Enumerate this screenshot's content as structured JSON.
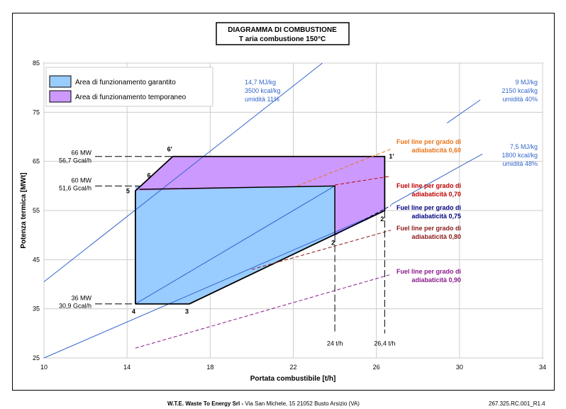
{
  "chart_data": {
    "type": "area",
    "title": "DIAGRAMMA DI COMBUSTIONE",
    "subtitle": "T aria combustione 150°C",
    "xlabel": "Portata combustibile [t/h]",
    "ylabel": "Potenza termica [MWt]",
    "xlim": [
      10,
      34
    ],
    "ylim": [
      25,
      85
    ],
    "xticks": [
      10,
      14,
      18,
      22,
      26,
      30,
      34
    ],
    "yticks": [
      25,
      35,
      45,
      55,
      65,
      75,
      85
    ],
    "grid": true,
    "legend_position": "top-left",
    "legend": [
      {
        "label": "Area di funzionamento garantito",
        "color": "#99ccff"
      },
      {
        "label": "Area di funzionamento temporaneo",
        "color": "#cc99ff"
      }
    ],
    "regions": [
      {
        "name": "Area di funzionamento garantito",
        "color": "#99ccff",
        "x": [
          14.4,
          14.4,
          24.0,
          24.0,
          17.0
        ],
        "y": [
          36,
          60,
          60,
          50,
          36
        ]
      },
      {
        "name": "Area di funzionamento temporaneo",
        "color": "#cc99ff",
        "x": [
          14.4,
          16.2,
          26.4,
          26.4,
          24.0,
          24.0
        ],
        "y": [
          59,
          66,
          66,
          55,
          50,
          60
        ]
      }
    ],
    "operating_points": [
      {
        "label": "1'",
        "x": 26.4,
        "y": 66
      },
      {
        "label": "2",
        "x": 24.0,
        "y": 50
      },
      {
        "label": "2'",
        "x": 26.4,
        "y": 55
      },
      {
        "label": "3",
        "x": 17.0,
        "y": 36
      },
      {
        "label": "4",
        "x": 14.4,
        "y": 36
      },
      {
        "label": "5",
        "x": 14.4,
        "y": 59
      },
      {
        "label": "6",
        "x": 14.9,
        "y": 61
      },
      {
        "label": "6'",
        "x": 16.2,
        "y": 66
      }
    ],
    "calorific_lines": [
      {
        "lines": [
          "14,7 MJ/kg",
          "3500 kcal/kg",
          "umidità 11%"
        ],
        "color": "#3366cc",
        "x": [
          10,
          23.4
        ],
        "y": [
          40.5,
          85
        ]
      },
      {
        "lines": [
          "9 MJ/kg",
          "2150 kcal/kg",
          "umidità 40%"
        ],
        "color": "#3366cc",
        "x": [
          14.4,
          24.0
        ],
        "y": [
          36,
          60
        ]
      },
      {
        "lines": [
          "7,5 MJ/kg",
          "1800 kcal/kg",
          "umidità 48%"
        ],
        "color": "#3366cc",
        "x": [
          10,
          26.4
        ],
        "y": [
          25,
          55
        ]
      }
    ],
    "fuel_lines": [
      {
        "lines": [
          "Fuel line per grado di",
          "adiabaticità 0,60"
        ],
        "color": "#e8741a",
        "x": [
          22.2,
          26.7
        ],
        "y": [
          60,
          67.5
        ]
      },
      {
        "lines": [
          "Fuel line per grado di",
          "adiabaticità 0,70"
        ],
        "color": "#c00000",
        "x": [
          24.0,
          26.7
        ],
        "y": [
          60.2,
          62
        ]
      },
      {
        "lines": [
          "Fuel line per grado di",
          "adiabaticità 0,75"
        ],
        "color": "#000080",
        "x": [
          24.0,
          26.7
        ],
        "y": [
          50,
          56
        ]
      },
      {
        "lines": [
          "Fuel line per grado di",
          "adiabaticità 0,80"
        ],
        "color": "#8b1a1a",
        "x": [
          20.0,
          26.7
        ],
        "y": [
          43,
          51
        ]
      },
      {
        "lines": [
          "Fuel line per grado di",
          "adiabaticità 0,90"
        ],
        "color": "#8b1a8b",
        "x": [
          14.4,
          26.7
        ],
        "y": [
          27,
          42
        ]
      }
    ],
    "reference_lines": [
      {
        "lines": [
          "66 MW",
          "56,7 Gcal/h"
        ],
        "y": 66,
        "x_end": 16.2
      },
      {
        "lines": [
          "60 MW",
          "51,6 Gcal/h"
        ],
        "y": 60,
        "x_end": 14.6
      },
      {
        "lines": [
          "36 MW",
          "30,9 Gcal/h"
        ],
        "y": 36,
        "x_end": 14.4
      },
      {
        "lines": [
          "24 t/h"
        ],
        "x": 24.0,
        "y_from": 50,
        "y_to": 30
      },
      {
        "lines": [
          "26,4 t/h"
        ],
        "x": 26.4,
        "y_from": 55,
        "y_to": 30
      }
    ]
  },
  "footer": {
    "company": "W.T.E. Waste To Energy Srl -",
    "address": " Via San Michele, 15 21052 Busto Arsizio (VA)",
    "doc_code": "267.325.RC.001_R1.4"
  }
}
